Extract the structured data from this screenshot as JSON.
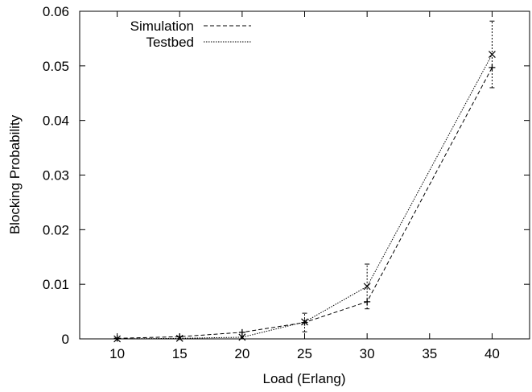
{
  "chart_data": {
    "type": "line",
    "title": "",
    "xlabel": "Load (Erlang)",
    "ylabel": "Blocking Probability",
    "xlim": [
      7,
      43
    ],
    "ylim": [
      0,
      0.06
    ],
    "xticks": [
      10,
      15,
      20,
      25,
      30,
      35,
      40
    ],
    "xtick_labels": [
      "10",
      "15",
      "20",
      "25",
      "30",
      "35",
      "40"
    ],
    "yticks": [
      0,
      0.01,
      0.02,
      0.03,
      0.04,
      0.05,
      0.06
    ],
    "ytick_labels": [
      "0",
      "0.01",
      "0.02",
      "0.03",
      "0.04",
      "0.05",
      "0.06"
    ],
    "grid": false,
    "legend_position": "top-left",
    "x": [
      10,
      15,
      20,
      25,
      30,
      40
    ],
    "series": [
      {
        "name": "Simulation",
        "values": [
          0.0001,
          0.0004,
          0.0012,
          0.003,
          0.0068,
          0.0497
        ],
        "line_style": "dashed",
        "marker": "plus",
        "color": "#000000"
      },
      {
        "name": "Testbed",
        "values": [
          0.0,
          0.0001,
          0.0003,
          0.0031,
          0.0096,
          0.0521
        ],
        "line_style": "dotted",
        "marker": "cross",
        "color": "#000000",
        "error_bars": [
          null,
          null,
          null,
          [
            0.0013,
            0.0047
          ],
          [
            0.0055,
            0.0137
          ],
          [
            0.046,
            0.0582
          ]
        ]
      }
    ]
  }
}
